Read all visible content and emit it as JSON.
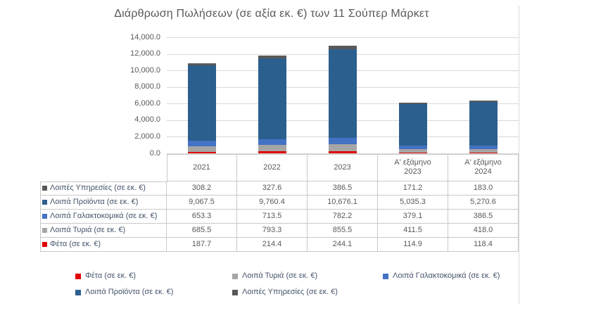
{
  "title": "Διάρθρωση Πωλήσεων (σε αξία εκ. €) των 11 Σούπερ Μάρκετ",
  "colors": {
    "feta": "#e00000",
    "loipa_tyria": "#a6a6a6",
    "loipa_galaktokomika": "#4472c4",
    "loipa_proionta": "#2b5f8e",
    "loipes_ypiresies": "#595959",
    "gridline": "#d9d9d9",
    "table_border": "#c9c9c9",
    "label_text": "#44546a",
    "value_text": "#595959"
  },
  "chart_data": {
    "type": "bar",
    "stacked": true,
    "title": "Διάρθρωση Πωλήσεων (σε αξία εκ. €) των 11 Σούπερ Μάρκετ",
    "categories": [
      "2021",
      "2022",
      "2023",
      "Α' εξάμηνο 2023",
      "Α' εξάμηνο 2024"
    ],
    "series": [
      {
        "name": "Φέτα (σε εκ. €)",
        "color": "#e00000",
        "values": [
          187.7,
          214.4,
          244.1,
          114.9,
          118.4
        ]
      },
      {
        "name": "Λοιπά Τυριά (σε εκ. €)",
        "color": "#a6a6a6",
        "values": [
          685.5,
          793.3,
          855.5,
          411.5,
          418.0
        ]
      },
      {
        "name": "Λοιπά Γαλακτοκομικά (σε εκ. €)",
        "color": "#4472c4",
        "values": [
          653.3,
          713.5,
          782.2,
          379.1,
          386.5
        ]
      },
      {
        "name": "Λοιπά Προϊόντα (σε εκ. €)",
        "color": "#2b5f8e",
        "values": [
          9067.5,
          9760.4,
          10676.1,
          5035.3,
          5270.6
        ]
      },
      {
        "name": "Λοιπές Υπηρεσίες (σε εκ. €)",
        "color": "#595959",
        "values": [
          308.2,
          327.6,
          386.5,
          171.2,
          183.0
        ]
      }
    ],
    "ylim": [
      0,
      14000
    ],
    "ytick_step": 2000,
    "ytick_labels": [
      "0.0",
      "2,000.0",
      "4,000.0",
      "6,000.0",
      "8,000.0",
      "10,000.0",
      "12,000.0",
      "14,000.0"
    ],
    "grid": true,
    "legend_position": "bottom",
    "xlabel": "",
    "ylabel": ""
  },
  "table": {
    "columns": [
      "2021",
      "2022",
      "2023",
      "Α' εξάμηνο\n2023",
      "Α' εξάμηνο\n2024"
    ],
    "rows": [
      {
        "label": "Λοιπές Υπηρεσίες (σε εκ. €)",
        "color": "#595959",
        "values": [
          "308.2",
          "327.6",
          "386.5",
          "171.2",
          "183.0"
        ]
      },
      {
        "label": "Λοιπά Προϊόντα (σε εκ. €)",
        "color": "#2b5f8e",
        "values": [
          "9,067.5",
          "9,760.4",
          "10,676.1",
          "5,035.3",
          "5,270.6"
        ]
      },
      {
        "label": "Λοιπά Γαλακτοκομικά (σε εκ. €)",
        "color": "#4472c4",
        "values": [
          "653.3",
          "713.5",
          "782.2",
          "379.1",
          "386.5"
        ]
      },
      {
        "label": "Λοιπά Τυριά (σε εκ. €)",
        "color": "#a6a6a6",
        "values": [
          "685.5",
          "793.3",
          "855.5",
          "411.5",
          "418.0"
        ]
      },
      {
        "label": "Φέτα (σε εκ. €)",
        "color": "#e00000",
        "values": [
          "187.7",
          "214.4",
          "244.1",
          "114.9",
          "118.4"
        ]
      }
    ]
  },
  "legend": {
    "items": [
      {
        "label": "Φέτα (σε εκ. €)",
        "color": "#e00000"
      },
      {
        "label": "Λοιπά Τυριά (σε εκ. €)",
        "color": "#a6a6a6"
      },
      {
        "label": "Λοιπά Γαλακτοκομικά (σε εκ. €)",
        "color": "#4472c4"
      },
      {
        "label": "Λοιπά Προϊόντα (σε εκ. €)",
        "color": "#2b5f8e"
      },
      {
        "label": "Λοιπές Υπηρεσίες (σε εκ. €)",
        "color": "#595959"
      }
    ]
  }
}
